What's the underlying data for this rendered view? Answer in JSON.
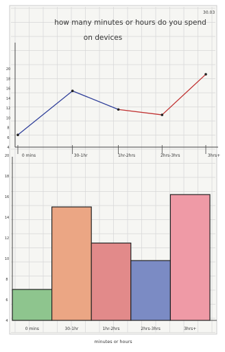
{
  "title_line1": "how many minutes or hours do you spend",
  "title_line2": "on devices",
  "corner_mark": "30.03",
  "footer_label": "minutes or hours",
  "chart_data": [
    {
      "type": "line",
      "title": "how many minutes or hours do you spend on devices",
      "categories": [
        "0 mins",
        "30-1hr",
        "1hr-2hrs",
        "2hrs-3hrs",
        "3hrs+"
      ],
      "y_ticks": [
        4,
        6,
        8,
        10,
        12,
        14,
        16,
        18,
        20
      ],
      "x_points": [
        0,
        1.25,
        2.3,
        3.3,
        4.3
      ],
      "values": [
        6.5,
        15.5,
        11.7,
        10.6,
        18.9
      ],
      "segment_colors": [
        "#5aa65a",
        "#2f3f9a",
        "#2f3f9a",
        "#c03030",
        "#c03030"
      ],
      "ylim": [
        4,
        22
      ]
    },
    {
      "type": "bar",
      "categories": [
        "0 mins",
        "30-1hr",
        "1hr-2hrs",
        "2hrs-3hrs",
        "3hrs+"
      ],
      "y_ticks": [
        4,
        6,
        8,
        10,
        12,
        14,
        16,
        18,
        20
      ],
      "values": [
        7,
        15,
        11.5,
        9.8,
        16.2
      ],
      "bar_colors": [
        "#8ec58e",
        "#eba684",
        "#e28a8a",
        "#7b8bc4",
        "#ef9aa6"
      ],
      "ylim": [
        4,
        18
      ]
    }
  ]
}
